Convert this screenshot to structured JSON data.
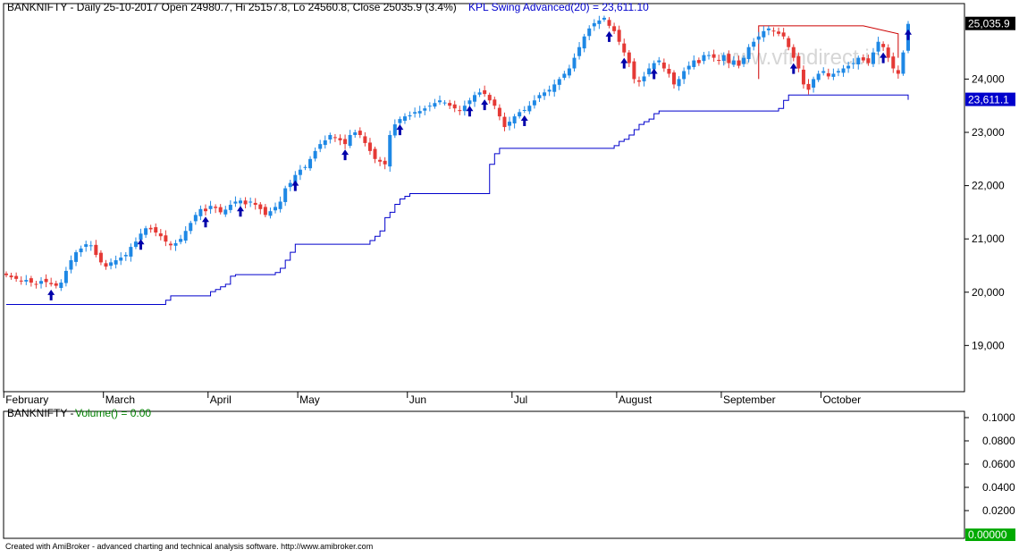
{
  "header": {
    "info_text": "BANKNIFTY - Daily 25-10-2017 Open 24980.7, Hi 25157.8, Lo 24560.8, Close 25035.9 (3.4%)",
    "indicator_text": "KPL Swing Advanced(20) = 23,611.10"
  },
  "watermark": "www.vfmdirect.in",
  "price_panel": {
    "y_ticks": [
      19000,
      20000,
      21000,
      22000,
      23000,
      24000
    ],
    "y_tick_labels": [
      "19,000",
      "20,000",
      "21,000",
      "22,000",
      "23,000",
      "24,000"
    ],
    "last_close_label": "25,035.9",
    "indicator_value_label": "23,611.1",
    "months": [
      "February",
      "March",
      "April",
      "May",
      "Jun",
      "Jul",
      "August",
      "September",
      "October"
    ]
  },
  "volume_panel": {
    "title": "BANKNIFTY - ",
    "indicator": "Volume() = 0.00",
    "y_tick_labels": [
      "0.1000",
      "0.0800",
      "0.0600",
      "0.0400",
      "0.0200"
    ],
    "current_label": "0.00000"
  },
  "footer_text": "Created with AmiBroker - advanced charting and technical analysis software. http://www.amibroker.com",
  "colors": {
    "up": "#1e88e5",
    "down": "#e53935",
    "indicator": "#0000cc",
    "stop_line": "#cc0000",
    "arrow": "#0000aa",
    "volume_label_bg": "#00aa00"
  },
  "chart_data": {
    "type": "candlestick",
    "title": "BANKNIFTY - Daily",
    "series": [
      {
        "name": "BANKNIFTY",
        "x": [
          "Feb",
          "Feb",
          "Feb",
          "Feb",
          "Feb",
          "Feb",
          "Feb",
          "Feb",
          "Feb",
          "Feb",
          "Feb",
          "Feb",
          "Feb",
          "Feb",
          "Feb",
          "Feb",
          "Feb",
          "Feb",
          "Feb",
          "Feb",
          "Mar",
          "Mar",
          "Mar",
          "Mar",
          "Mar",
          "Mar",
          "Mar",
          "Mar",
          "Mar",
          "Mar",
          "Mar",
          "Mar",
          "Mar",
          "Mar",
          "Mar",
          "Mar",
          "Mar",
          "Mar",
          "Mar",
          "Mar",
          "Mar",
          "Apr",
          "Apr",
          "Apr",
          "Apr",
          "Apr",
          "Apr",
          "Apr",
          "Apr",
          "Apr",
          "Apr",
          "Apr",
          "Apr",
          "Apr",
          "Apr",
          "Apr",
          "Apr",
          "Apr",
          "Apr",
          "May",
          "May",
          "May",
          "May",
          "May",
          "May",
          "May",
          "May",
          "May",
          "May",
          "May",
          "May",
          "May",
          "May",
          "May",
          "May",
          "May",
          "May",
          "May",
          "May",
          "May",
          "May",
          "Jun",
          "Jun",
          "Jun",
          "Jun",
          "Jun",
          "Jun",
          "Jun",
          "Jun",
          "Jun",
          "Jun",
          "Jun",
          "Jun",
          "Jun",
          "Jun",
          "Jun",
          "Jun",
          "Jun",
          "Jun",
          "Jun",
          "Jun",
          "Jun",
          "Jul",
          "Jul",
          "Jul",
          "Jul",
          "Jul",
          "Jul",
          "Jul",
          "Jul",
          "Jul",
          "Jul",
          "Jul",
          "Jul",
          "Jul",
          "Jul",
          "Jul",
          "Jul",
          "Jul",
          "Jul",
          "Jul",
          "Jul",
          "Jul",
          "Aug",
          "Aug",
          "Aug",
          "Aug",
          "Aug",
          "Aug",
          "Aug",
          "Aug",
          "Aug",
          "Aug",
          "Aug",
          "Aug",
          "Aug",
          "Aug",
          "Aug",
          "Aug",
          "Aug",
          "Aug",
          "Aug",
          "Aug",
          "Aug",
          "Sep",
          "Sep",
          "Sep",
          "Sep",
          "Sep",
          "Sep",
          "Sep",
          "Sep",
          "Sep",
          "Sep",
          "Sep",
          "Sep",
          "Sep",
          "Sep",
          "Sep",
          "Sep",
          "Sep",
          "Sep",
          "Sep",
          "Sep",
          "Oct",
          "Oct",
          "Oct",
          "Oct",
          "Oct",
          "Oct",
          "Oct",
          "Oct",
          "Oct",
          "Oct",
          "Oct",
          "Oct",
          "Oct",
          "Oct",
          "Oct",
          "Oct",
          "Oct",
          "Oct"
        ],
        "close": [
          20320,
          20280,
          20250,
          20200,
          20230,
          20180,
          20150,
          20210,
          20190,
          20150,
          20120,
          20180,
          20400,
          20600,
          20750,
          20820,
          20900,
          20880,
          20700,
          20560,
          20480,
          20560,
          20600,
          20650,
          20700,
          20850,
          20950,
          21100,
          21200,
          21180,
          21120,
          21050,
          20950,
          20880,
          20920,
          21000,
          21150,
          21300,
          21450,
          21560,
          21520,
          21620,
          21580,
          21500,
          21550,
          21640,
          21700,
          21720,
          21650,
          21700,
          21640,
          21560,
          21450,
          21520,
          21600,
          21700,
          21950,
          22050,
          22200,
          22300,
          22350,
          22500,
          22650,
          22780,
          22850,
          22950,
          22900,
          22850,
          22780,
          22950,
          23000,
          22950,
          22800,
          22650,
          22500,
          22450,
          22400,
          22950,
          23150,
          23250,
          23300,
          23320,
          23380,
          23400,
          23450,
          23500,
          23550,
          23600,
          23560,
          23500,
          23450,
          23400,
          23500,
          23600,
          23700,
          23750,
          23720,
          23600,
          23500,
          23300,
          23100,
          23200,
          23300,
          23380,
          23420,
          23500,
          23600,
          23700,
          23750,
          23800,
          23900,
          24000,
          24100,
          24200,
          24400,
          24600,
          24800,
          24950,
          25050,
          25100,
          25150,
          25000,
          24900,
          24700,
          24500,
          24300,
          24000,
          23950,
          24050,
          24200,
          24300,
          24350,
          24200,
          24100,
          23900,
          24000,
          24150,
          24250,
          24350,
          24300,
          24450,
          24450,
          24400,
          24350,
          24450,
          24300,
          24350,
          24250,
          24400,
          24600,
          24700,
          24800,
          24900,
          24950,
          24900,
          24850,
          24800,
          24600,
          24400,
          24200,
          23900,
          23800,
          24000,
          24100,
          24150,
          24050,
          24100,
          24150,
          24200,
          24250,
          24300,
          24400,
          24350,
          24300,
          24500,
          24700,
          24600,
          24400,
          24200,
          24100,
          24500,
          25035.9
        ]
      },
      {
        "name": "KPL Swing Advanced(20)",
        "value_last": 23611.1
      }
    ],
    "ylim": [
      18200,
      25350
    ],
    "ylabel": "",
    "xlabel": ""
  }
}
